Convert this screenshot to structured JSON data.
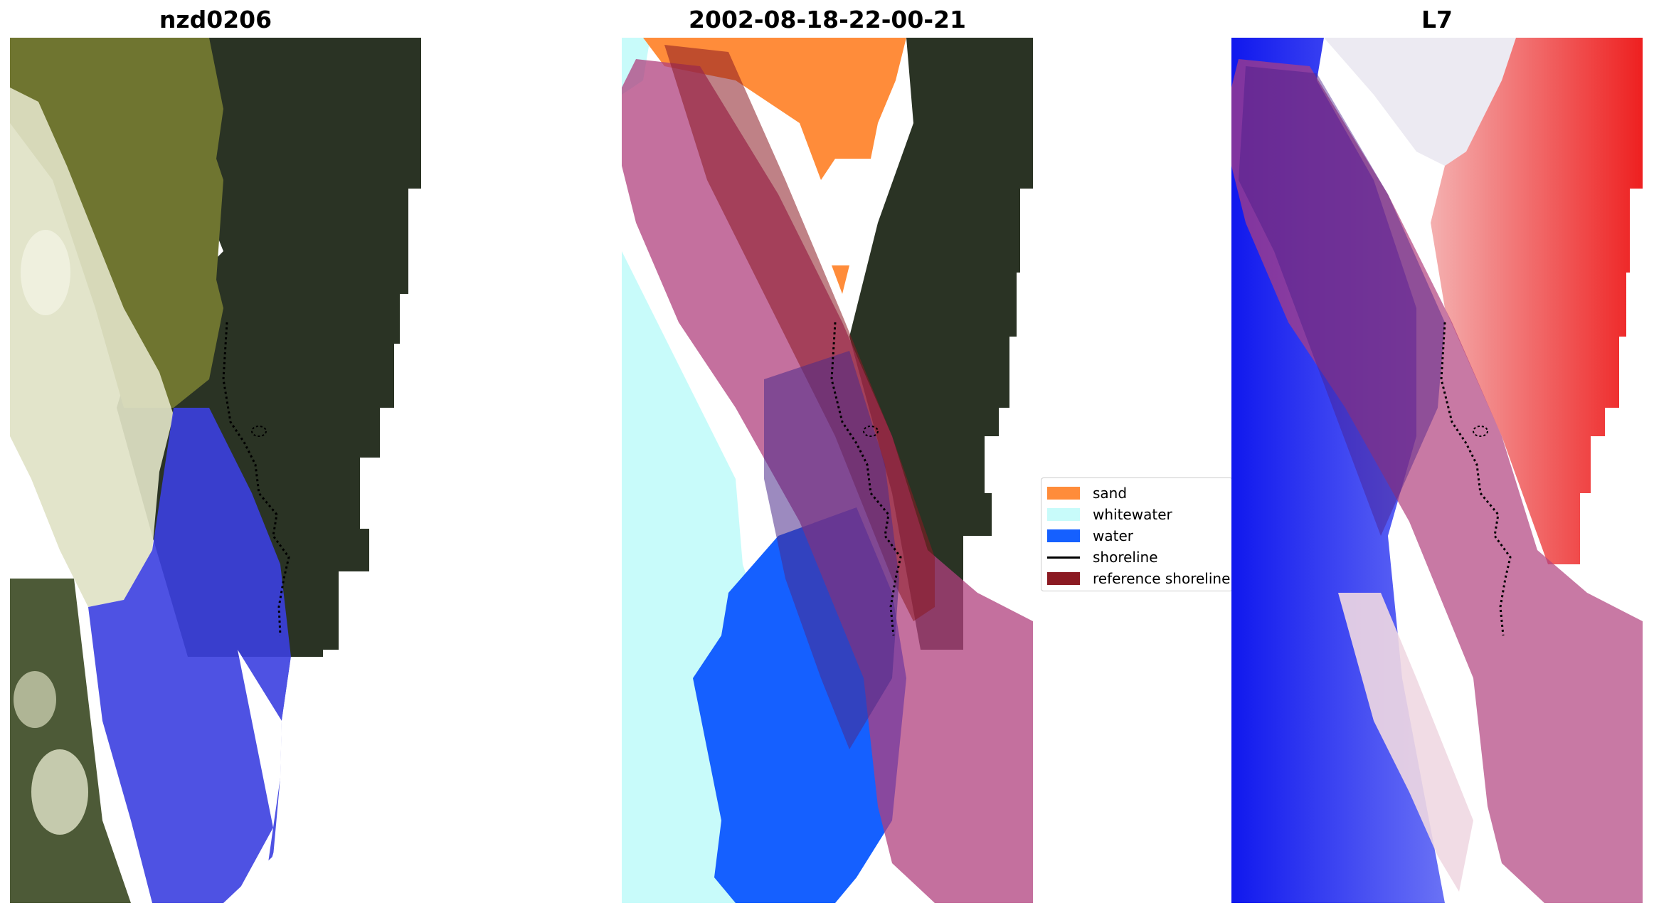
{
  "panels": [
    {
      "title": "nzd0206"
    },
    {
      "title": "2002-08-18-22-00-21"
    },
    {
      "title": "L7"
    }
  ],
  "legend": {
    "items": [
      {
        "label": "sand",
        "color": "#ff8c3a",
        "kind": "patch"
      },
      {
        "label": "whitewater",
        "color": "#c8fbfa",
        "kind": "patch"
      },
      {
        "label": "water",
        "color": "#1560ff",
        "kind": "patch"
      },
      {
        "label": "shoreline",
        "color": "#000000",
        "kind": "line"
      },
      {
        "label": "reference shoreline",
        "color": "#8b1a22",
        "kind": "patch"
      }
    ]
  },
  "colors": {
    "land_dark": "#2c3428",
    "land_yellow": "#7b7f2e",
    "cloud": "#e6e8d0",
    "water_blue": "#3a3ee6",
    "buffer": "#b0407e",
    "index_red": "#ee2020",
    "index_blue": "#1020f0"
  }
}
